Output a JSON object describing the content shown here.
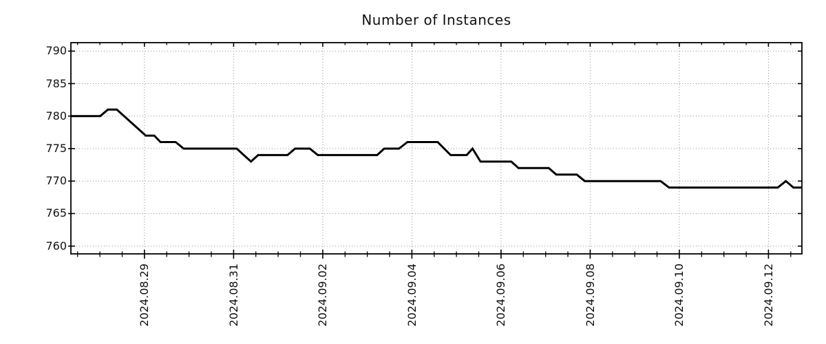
{
  "title": "Number of Instances",
  "colors": {
    "line": "#000000",
    "grid": "#8c8c8c",
    "axis": "#000000",
    "text": "#111111",
    "background": "#ffffff"
  },
  "chart_data": {
    "type": "line",
    "title": "Number of Instances",
    "xlabel": "",
    "ylabel": "",
    "grid": true,
    "legend": false,
    "x_axis": {
      "epoch_label": "2024.08.29",
      "tick_days": [
        0,
        2,
        4,
        6,
        8,
        10,
        12,
        14
      ],
      "tick_labels": [
        "2024.08.29",
        "2024.08.31",
        "2024.09.02",
        "2024.09.04",
        "2024.09.06",
        "2024.09.08",
        "2024.09.10",
        "2024.09.12"
      ],
      "minor_tick_interval_days": 0.5,
      "range_days": [
        -1.65,
        14.75
      ],
      "label_rotation_deg": 90
    },
    "y_axis": {
      "ticks": [
        760,
        765,
        770,
        775,
        780,
        785,
        790
      ],
      "range": [
        758.8,
        791.3
      ]
    },
    "series": [
      {
        "name": "instances",
        "color": "#000000",
        "points": [
          [
            -1.65,
            780
          ],
          [
            -0.99,
            780
          ],
          [
            -0.82,
            781
          ],
          [
            -0.62,
            781
          ],
          [
            0.03,
            777
          ],
          [
            0.22,
            777
          ],
          [
            0.36,
            776
          ],
          [
            0.7,
            776
          ],
          [
            0.88,
            775
          ],
          [
            2.07,
            775
          ],
          [
            2.39,
            773
          ],
          [
            2.55,
            774
          ],
          [
            3.21,
            774
          ],
          [
            3.38,
            775
          ],
          [
            3.71,
            775
          ],
          [
            3.89,
            774
          ],
          [
            5.22,
            774
          ],
          [
            5.38,
            775
          ],
          [
            5.71,
            775
          ],
          [
            5.9,
            776
          ],
          [
            6.58,
            776
          ],
          [
            6.87,
            774
          ],
          [
            7.23,
            774
          ],
          [
            7.36,
            775
          ],
          [
            7.54,
            773
          ],
          [
            8.23,
            773
          ],
          [
            8.39,
            772
          ],
          [
            9.07,
            772
          ],
          [
            9.24,
            771
          ],
          [
            9.7,
            771
          ],
          [
            9.88,
            770
          ],
          [
            11.58,
            770
          ],
          [
            11.77,
            769
          ],
          [
            14.21,
            769
          ],
          [
            14.39,
            770
          ],
          [
            14.56,
            769
          ],
          [
            14.75,
            769
          ]
        ]
      }
    ]
  }
}
